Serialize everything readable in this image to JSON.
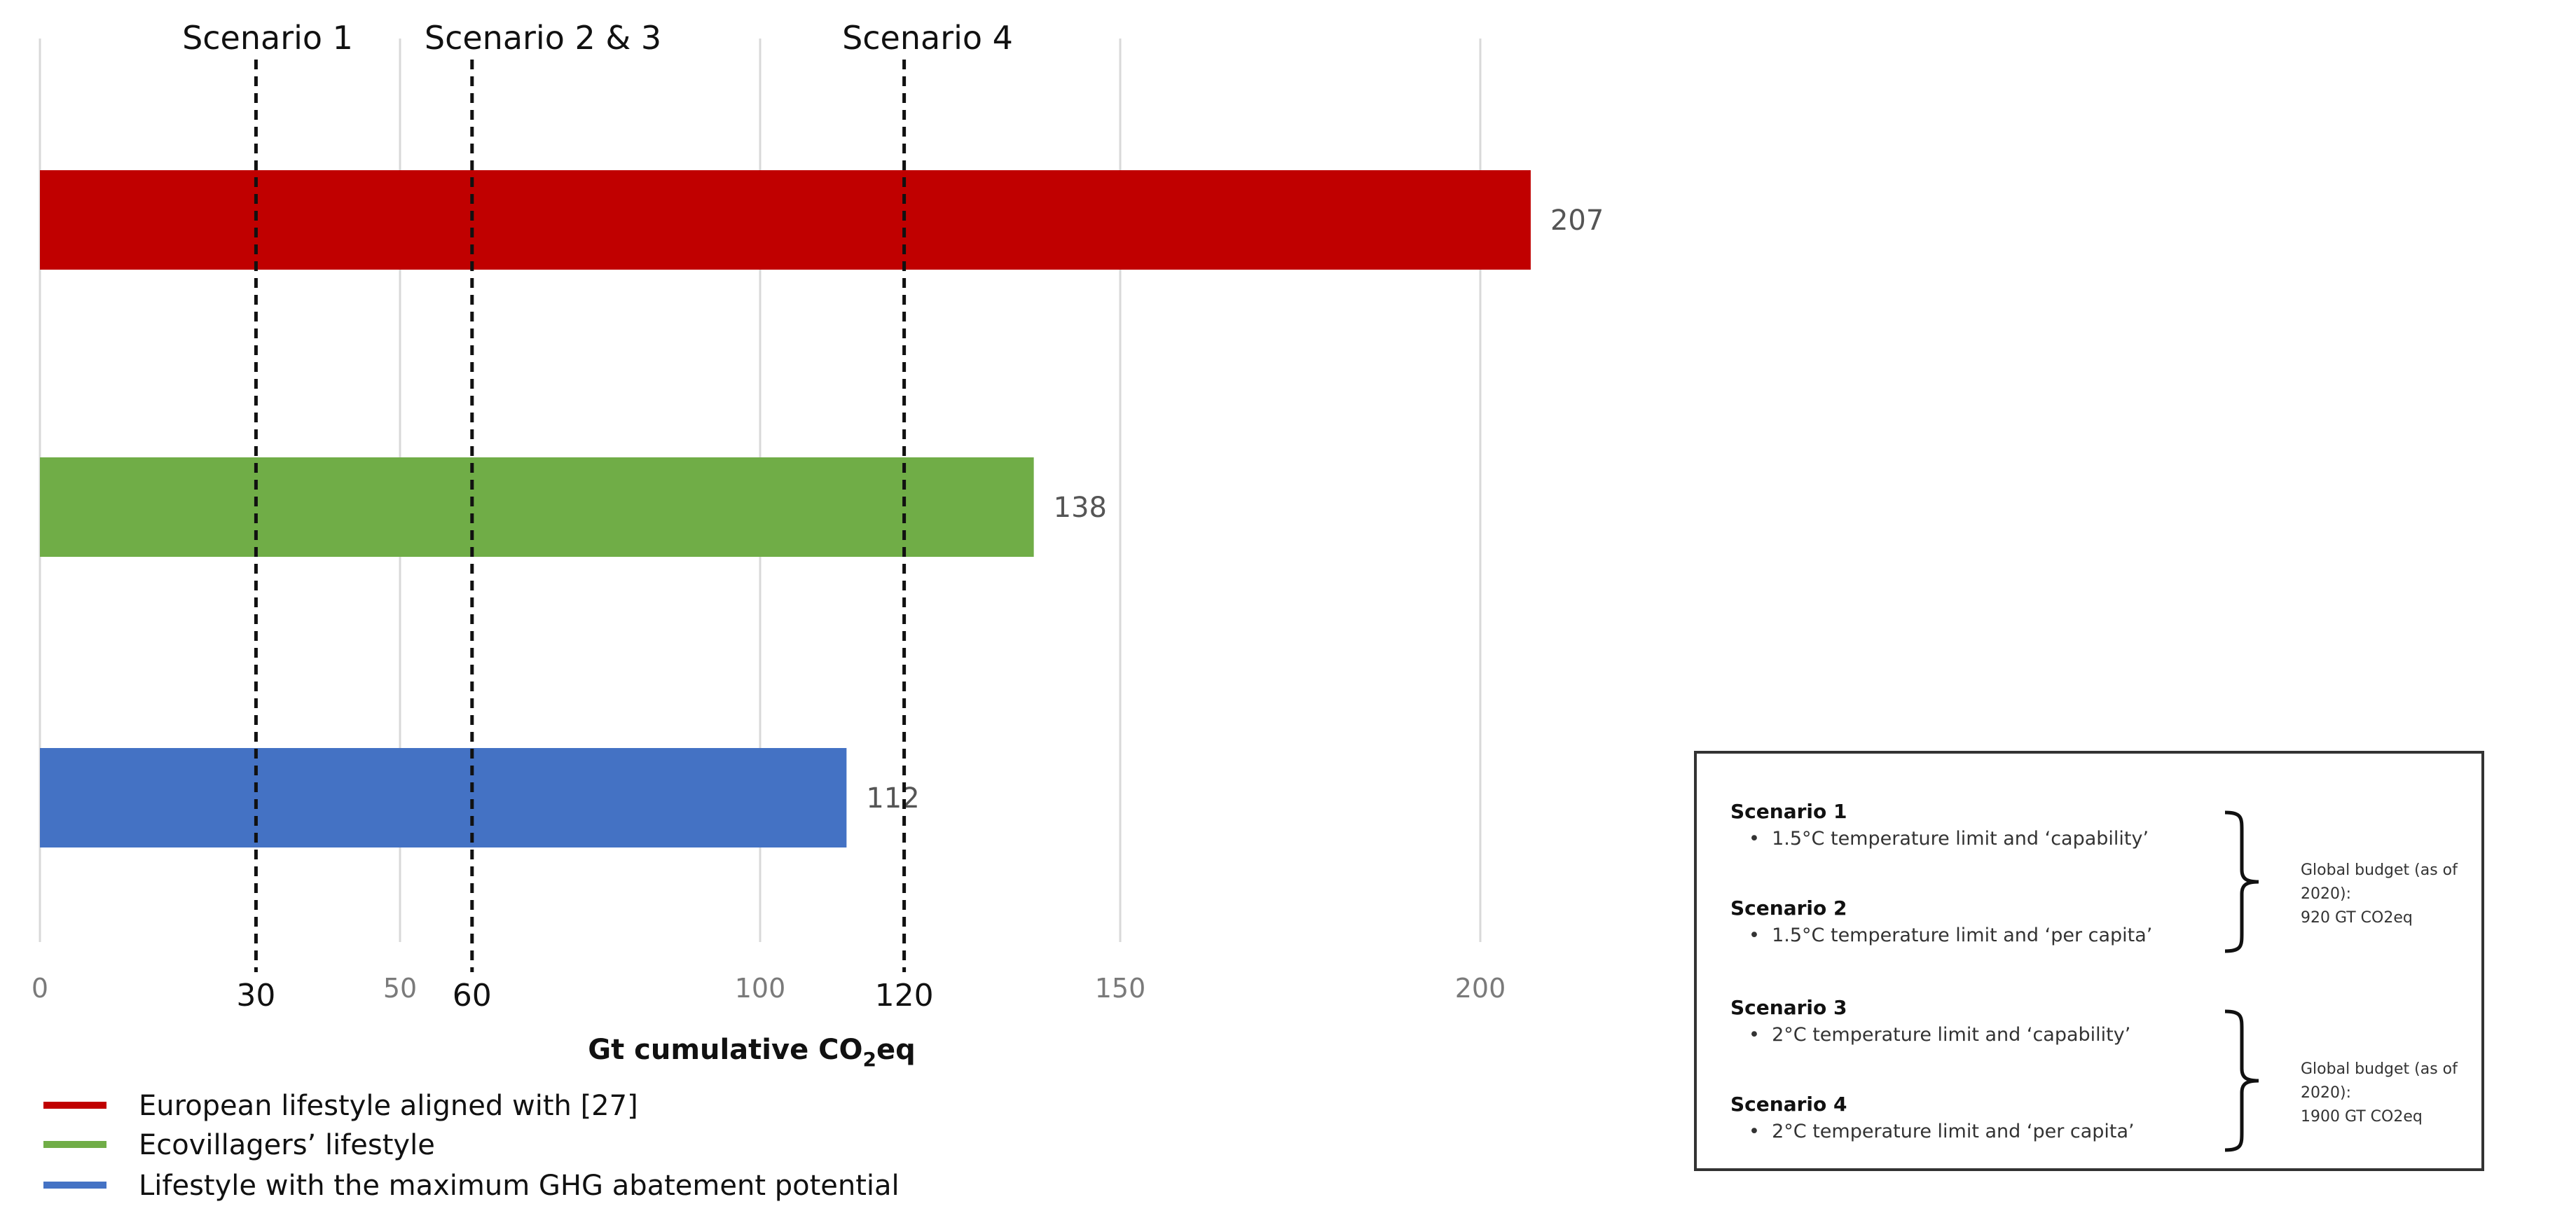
{
  "chart_data": {
    "type": "bar",
    "orientation": "horizontal",
    "xlabel": "Gt cumulative CO₂eq",
    "xlabel_main": "Gt cumulative CO",
    "xlabel_sub": "2",
    "xlabel_tail": "eq",
    "xlim": [
      0,
      207
    ],
    "xticks": [
      0,
      50,
      100,
      150,
      200
    ],
    "grid": "vertical",
    "series": [
      {
        "name": "European lifestyle aligned with [27]",
        "value": 207,
        "color": "#c00000"
      },
      {
        "name": "Ecovillagers’ lifestyle",
        "value": 138,
        "color": "#70ad47"
      },
      {
        "name": "Lifestyle with the maximum GHG abatement potential",
        "value": 112,
        "color": "#4472c4"
      }
    ],
    "reference_lines": [
      {
        "label": "Scenario 1",
        "value": 30
      },
      {
        "label": "Scenario 2 & 3",
        "value": 60
      },
      {
        "label": "Scenario 4",
        "value": 120
      }
    ],
    "legend_placement": "bottom-left"
  },
  "info_box": {
    "groups": [
      {
        "scenarios": [
          {
            "title": "Scenario 1",
            "item": "1.5°C temperature limit and ‘capability’"
          },
          {
            "title": "Scenario 2",
            "item": "1.5°C temperature limit and ‘per capita’"
          }
        ],
        "budget_line1": "Global budget (as of 2020):",
        "budget_line2": "920 GT CO2eq"
      },
      {
        "scenarios": [
          {
            "title": "Scenario 3",
            "item": "2°C temperature limit and ‘capability’"
          },
          {
            "title": "Scenario 4",
            "item": "2°C temperature limit and ‘per capita’"
          }
        ],
        "budget_line1": "Global budget (as of 2020):",
        "budget_line2": "1900 GT CO2eq"
      }
    ],
    "bullet": "•"
  }
}
